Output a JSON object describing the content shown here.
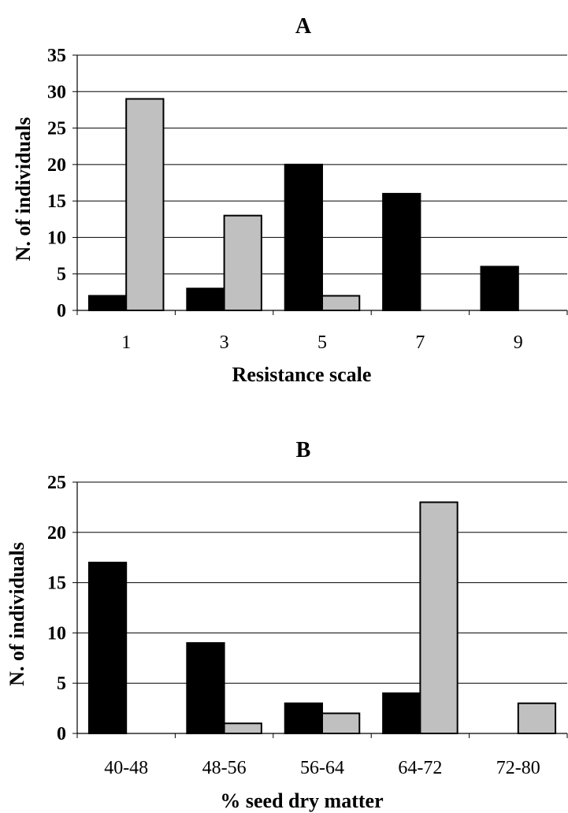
{
  "chart_data": [
    {
      "type": "bar",
      "title": "A",
      "xlabel": "Resistance scale",
      "ylabel": "N. of individuals",
      "ylim": [
        0,
        35
      ],
      "yticks": [
        0,
        5,
        10,
        15,
        20,
        25,
        30,
        35
      ],
      "grid": true,
      "categories": [
        "1",
        "3",
        "5",
        "7",
        "9"
      ],
      "series": [
        {
          "color": "#000000",
          "values": [
            2,
            3,
            20,
            16,
            6
          ]
        },
        {
          "color": "#c0c0c0",
          "values": [
            29,
            13,
            2,
            0,
            0
          ]
        }
      ]
    },
    {
      "type": "bar",
      "title": "B",
      "xlabel": "% seed dry matter",
      "ylabel": "N. of individuals",
      "ylim": [
        0,
        25
      ],
      "yticks": [
        0,
        5,
        10,
        15,
        20,
        25
      ],
      "grid": true,
      "categories": [
        "40-48",
        "48-56",
        "56-64",
        "64-72",
        "72-80"
      ],
      "series": [
        {
          "color": "#000000",
          "values": [
            17,
            9,
            3,
            4,
            0
          ]
        },
        {
          "color": "#c0c0c0",
          "values": [
            0,
            1,
            2,
            23,
            3
          ]
        }
      ]
    }
  ]
}
